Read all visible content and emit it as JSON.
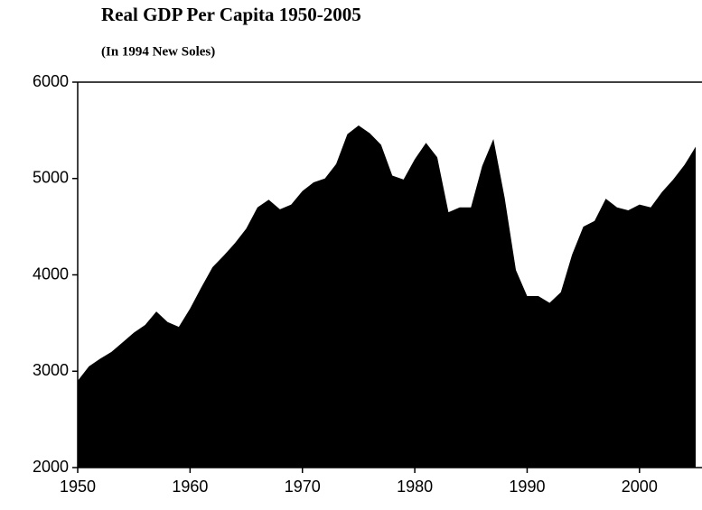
{
  "chart_data": {
    "type": "area",
    "title": "Real GDP Per Capita 1950-2005",
    "subtitle": "(In 1994 New Soles)",
    "x": [
      1950,
      1951,
      1952,
      1953,
      1954,
      1955,
      1956,
      1957,
      1958,
      1959,
      1960,
      1961,
      1962,
      1963,
      1964,
      1965,
      1966,
      1967,
      1968,
      1969,
      1970,
      1971,
      1972,
      1973,
      1974,
      1975,
      1976,
      1977,
      1978,
      1979,
      1980,
      1981,
      1982,
      1983,
      1984,
      1985,
      1986,
      1987,
      1988,
      1989,
      1990,
      1991,
      1992,
      1993,
      1994,
      1995,
      1996,
      1997,
      1998,
      1999,
      2000,
      2001,
      2002,
      2003,
      2004,
      2005
    ],
    "values": [
      2900,
      3050,
      3130,
      3200,
      3300,
      3400,
      3480,
      3620,
      3510,
      3460,
      3650,
      3870,
      4080,
      4200,
      4330,
      4480,
      4700,
      4780,
      4680,
      4730,
      4870,
      4960,
      5000,
      5150,
      5460,
      5550,
      5470,
      5350,
      5030,
      4990,
      5200,
      5370,
      5220,
      4650,
      4700,
      4700,
      5130,
      5410,
      4800,
      4050,
      3780,
      3780,
      3710,
      3820,
      4210,
      4500,
      4560,
      4790,
      4700,
      4670,
      4730,
      4700,
      4860,
      4990,
      5140,
      5330
    ],
    "color": "#000000",
    "xlim": [
      1950,
      2005
    ],
    "xticks": [
      1950,
      1960,
      1970,
      1980,
      1990,
      2000
    ],
    "ylim": [
      2000,
      6000
    ],
    "yticks": [
      2000,
      3000,
      4000,
      5000,
      6000
    ]
  }
}
